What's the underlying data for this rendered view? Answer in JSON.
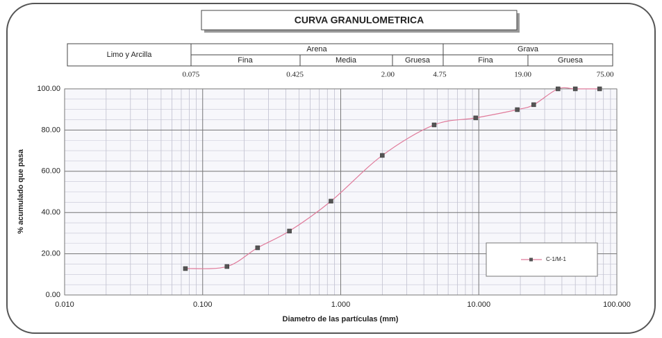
{
  "classification": {
    "limo": "Limo y Arcilla",
    "arena": {
      "label": "Arena",
      "fina": "Fina",
      "media": "Media",
      "gruesa": "Gruesa"
    },
    "grava": {
      "label": "Grava",
      "fina": "Fina",
      "gruesa": "Gruesa"
    },
    "sieves": [
      {
        "value": 0.075,
        "label": "0.075"
      },
      {
        "value": 0.425,
        "label": "0.425"
      },
      {
        "value": 2,
        "label": "2.00"
      },
      {
        "value": 4.75,
        "label": "4.75"
      },
      {
        "value": 19,
        "label": "19.00"
      },
      {
        "value": 75,
        "label": "75.00"
      }
    ]
  },
  "chart_data": {
    "type": "line",
    "title": "CURVA GRANULOMETRICA",
    "x_label": "Diametro de las partículas (mm)",
    "y_label": "% acumulado que pasa",
    "xlog": true,
    "xlim": [
      0.01,
      100
    ],
    "ylim": [
      0,
      100
    ],
    "xticks": [
      {
        "value": 0.01,
        "label": "0.010"
      },
      {
        "value": 0.1,
        "label": "0.100"
      },
      {
        "value": 1,
        "label": "1.000"
      },
      {
        "value": 10,
        "label": "10.000"
      },
      {
        "value": 100,
        "label": "100.000"
      }
    ],
    "yticks": [
      {
        "value": 0,
        "label": "0.00"
      },
      {
        "value": 20,
        "label": "20.00"
      },
      {
        "value": 40,
        "label": "40.00"
      },
      {
        "value": 60,
        "label": "60.00"
      },
      {
        "value": 80,
        "label": "80.00"
      },
      {
        "value": 100,
        "label": "100.00"
      }
    ],
    "grid": true,
    "legend": "lower right",
    "x": [
      0.075,
      0.15,
      0.25,
      0.425,
      0.85,
      2,
      4.75,
      9.5,
      19,
      25,
      37.5,
      50,
      75
    ],
    "series": [
      {
        "name": "C-1/M-1",
        "color": "#e07a9a",
        "marker_color": "#555555",
        "values": [
          12.8,
          13.8,
          22.9,
          31.0,
          45.5,
          67.7,
          82.5,
          85.9,
          89.9,
          92.3,
          100,
          100,
          100
        ]
      }
    ]
  }
}
